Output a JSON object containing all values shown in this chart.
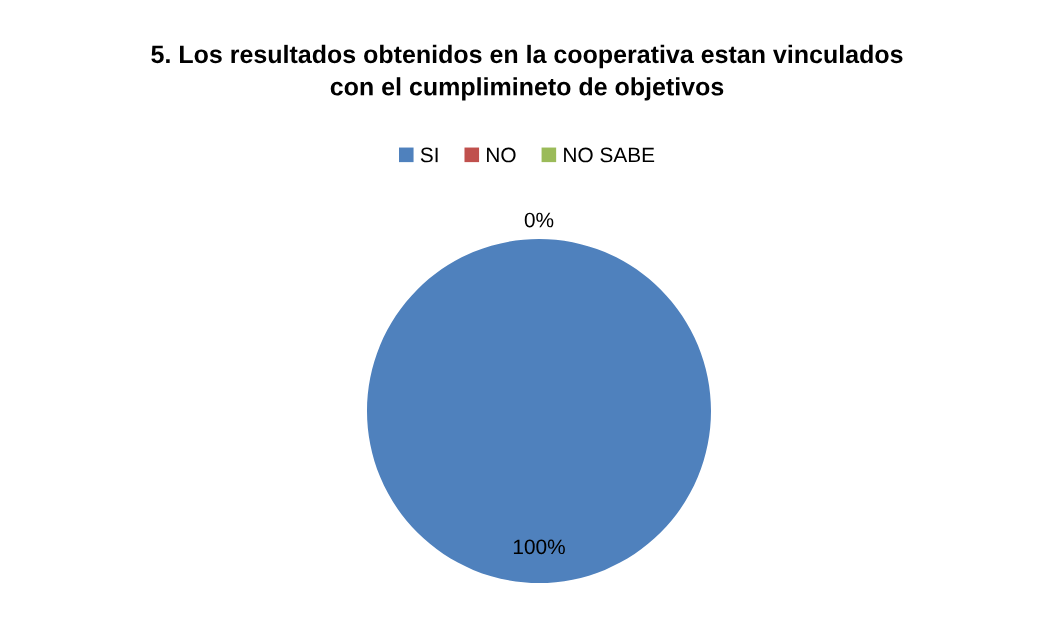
{
  "chart_data": {
    "type": "pie",
    "title": "5. Los resultados obtenidos en la cooperativa estan vinculados\ncon el cumplimineto de objetivos",
    "categories": [
      "SI",
      "NO",
      "NO SABE"
    ],
    "values": [
      100,
      0,
      0
    ],
    "colors": [
      "#4f81bd",
      "#c0504d",
      "#9bbb59"
    ],
    "value_labels": [
      "100%",
      "0%",
      null
    ],
    "legend": "top"
  }
}
